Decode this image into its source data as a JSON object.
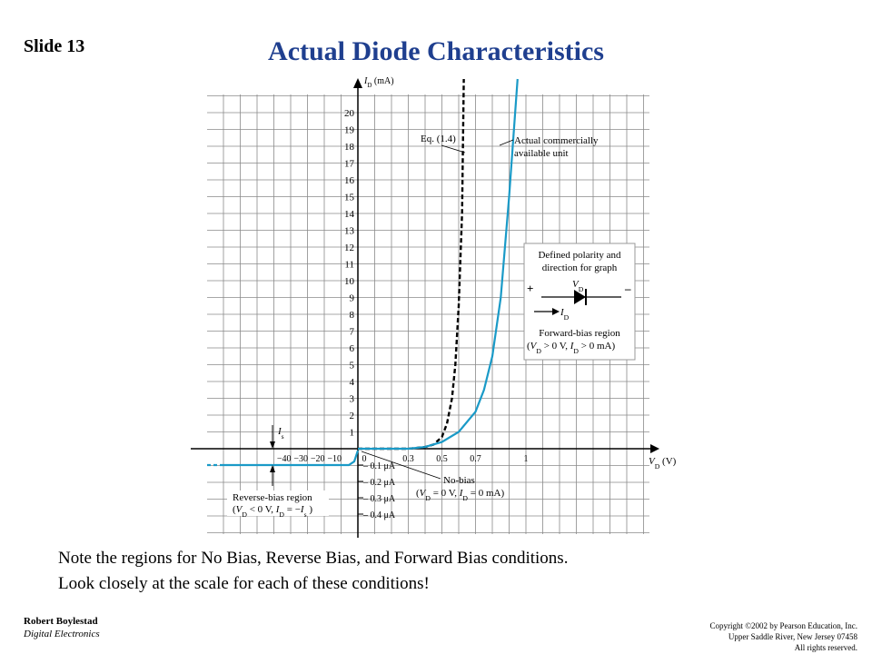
{
  "slide": {
    "number_label": "Slide 13",
    "title": "Actual Diode Characteristics"
  },
  "notes": {
    "line1": "Note the regions for No Bias, Reverse Bias, and Forward Bias conditions.",
    "line2": "Look closely at the scale for each of these conditions!"
  },
  "footer": {
    "author": "Robert Boylestad",
    "book": "Digital Electronics",
    "copyright_line1": "Copyright ©2002 by Pearson Education, Inc.",
    "copyright_line2": "Upper Saddle River, New Jersey 07458",
    "copyright_line3": "All rights reserved."
  },
  "chart_data": {
    "type": "line",
    "xlabel": "V_D (V)",
    "ylabel": "I_D (mA)",
    "x_ticks_forward": [
      "0",
      "0.3",
      "0.5",
      "0.7",
      "1"
    ],
    "x_ticks_reverse": [
      "−40",
      "−30",
      "−20",
      "−10"
    ],
    "y_ticks": [
      "1",
      "2",
      "3",
      "4",
      "5",
      "6",
      "7",
      "8",
      "9",
      "10",
      "11",
      "12",
      "13",
      "14",
      "15",
      "16",
      "17",
      "18",
      "19",
      "20"
    ],
    "neg_y_ticks": [
      "– 0.1 μA",
      "– 0.2 μA",
      "– 0.3 μA",
      "– 0.4 μA"
    ],
    "series": [
      {
        "name": "Eq. (1.4)",
        "style": "dashed",
        "color": "#000000",
        "x": [
          0.0,
          0.3,
          0.4,
          0.45,
          0.5,
          0.53,
          0.56,
          0.58,
          0.6,
          0.62,
          0.63
        ],
        "y": [
          0.0,
          0.0,
          0.1,
          0.25,
          0.7,
          1.5,
          3.0,
          5.0,
          8.5,
          14.0,
          22.0
        ]
      },
      {
        "name": "Actual commercially available unit",
        "style": "solid",
        "color": "#1a9ac7",
        "x": [
          0.0,
          0.3,
          0.4,
          0.5,
          0.6,
          0.7,
          0.75,
          0.8,
          0.85,
          0.9,
          0.95
        ],
        "y": [
          0.0,
          0.0,
          0.1,
          0.4,
          1.0,
          2.2,
          3.5,
          5.5,
          9.0,
          15.0,
          22.0
        ]
      }
    ],
    "annotations": {
      "eq_label": "Eq. (1.4)",
      "actual_label_line1": "Actual commercially",
      "actual_label_line2": "available unit",
      "is_label": "I_s",
      "nobias_line1": "No-bias",
      "nobias_line2": "(V_D = 0 V, I_D = 0 mA)",
      "reverse_line1": "Reverse-bias region",
      "reverse_line2": "(V_D < 0 V, I_D = −I_s )",
      "inset_line1": "Defined polarity and",
      "inset_line2": "direction for graph",
      "inset_vd": "V_D",
      "inset_plus": "+",
      "inset_minus": "–",
      "inset_id": "I_D",
      "inset_line3": "Forward-bias region",
      "inset_line4": "(V_D > 0 V,  I_D > 0  mA)"
    },
    "colors": {
      "curve": "#1a9ac7",
      "grid": "#8a8a8a",
      "title": "#1f3f8f"
    }
  }
}
